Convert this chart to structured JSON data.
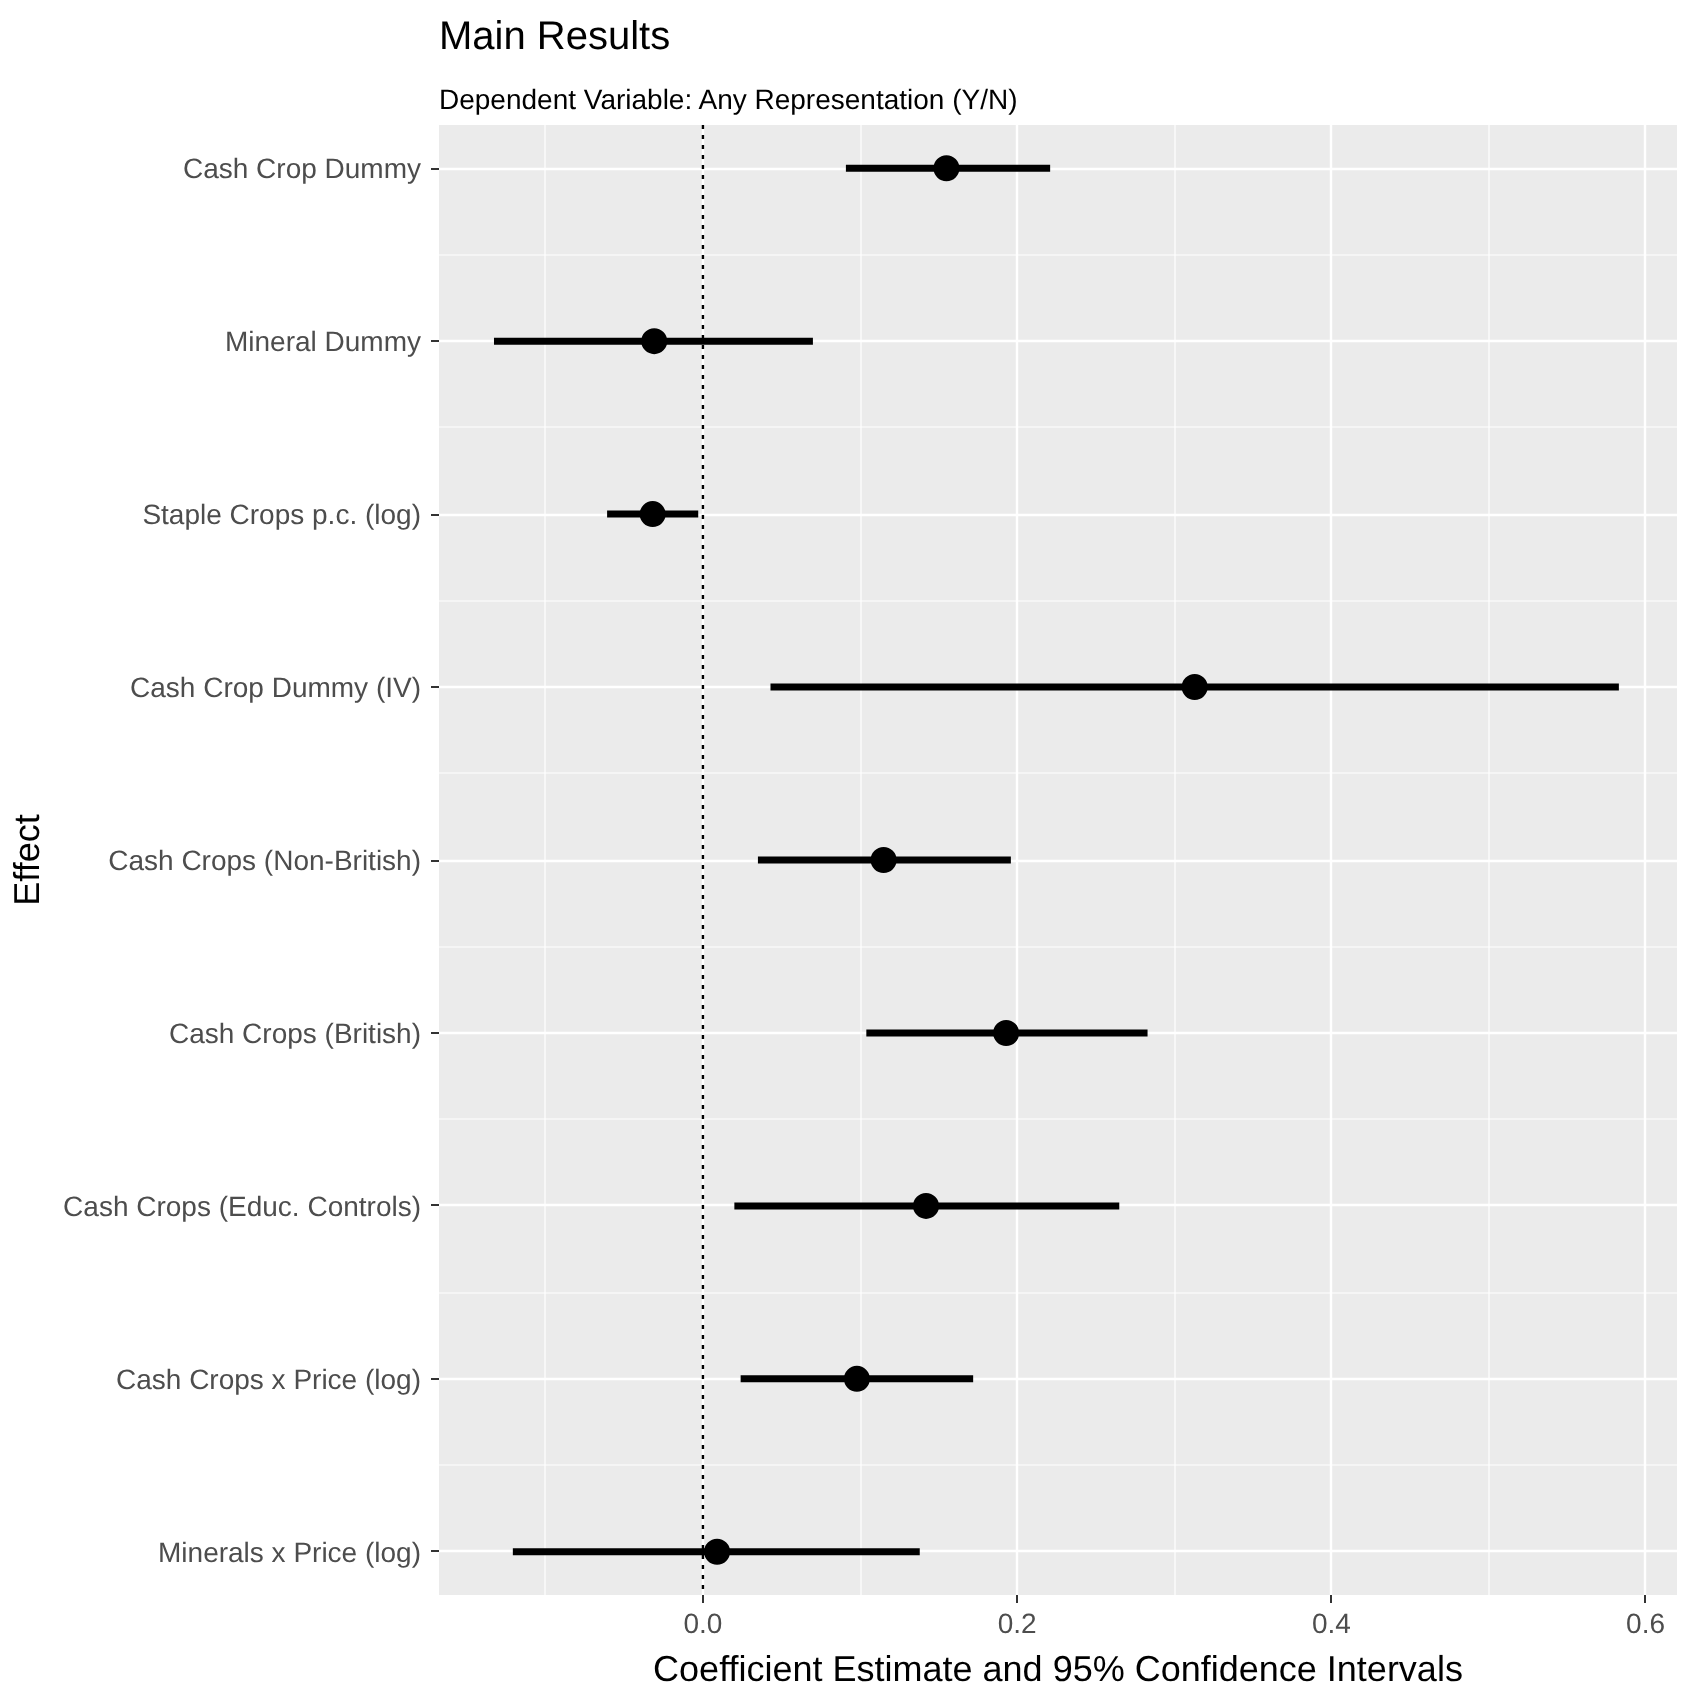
{
  "chart_data": {
    "type": "scatter",
    "orientation": "horizontal",
    "title": "Main Results",
    "subtitle": "Dependent Variable: Any Representation (Y/N)",
    "xlabel": "Coefficient Estimate and 95% Confidence Intervals",
    "ylabel": "Effect",
    "categories": [
      "Cash Crop Dummy",
      "Mineral Dummy",
      "Staple Crops p.c. (log)",
      "Cash Crop Dummy (IV)",
      "Cash Crops (Non-British)",
      "Cash Crops (British)",
      "Cash Crops (Educ. Controls)",
      "Cash Crops x Price (log)",
      "Minerals x Price (log)"
    ],
    "values": [
      0.155,
      -0.031,
      -0.032,
      0.313,
      0.115,
      0.193,
      0.142,
      0.098,
      0.009
    ],
    "errors": [
      [
        0.091,
        0.221
      ],
      [
        -0.133,
        0.07
      ],
      [
        -0.061,
        -0.003
      ],
      [
        0.043,
        0.583
      ],
      [
        0.035,
        0.196
      ],
      [
        0.104,
        0.283
      ],
      [
        0.02,
        0.265
      ],
      [
        0.024,
        0.172
      ],
      [
        -0.121,
        0.138
      ]
    ],
    "color": "#000000",
    "marker": "circle",
    "xlim": [
      -0.168,
      0.62
    ],
    "xticks": [
      {
        "value": 0,
        "label": "0.0"
      },
      {
        "value": 0.2,
        "label": "0.2"
      },
      {
        "value": 0.4,
        "label": "0.4"
      },
      {
        "value": 0.6,
        "label": "0.6"
      }
    ],
    "ref_lines": [
      {
        "axis": "x",
        "value": 0,
        "line_style": "dotted",
        "color": "#000000"
      }
    ],
    "grid": true
  }
}
